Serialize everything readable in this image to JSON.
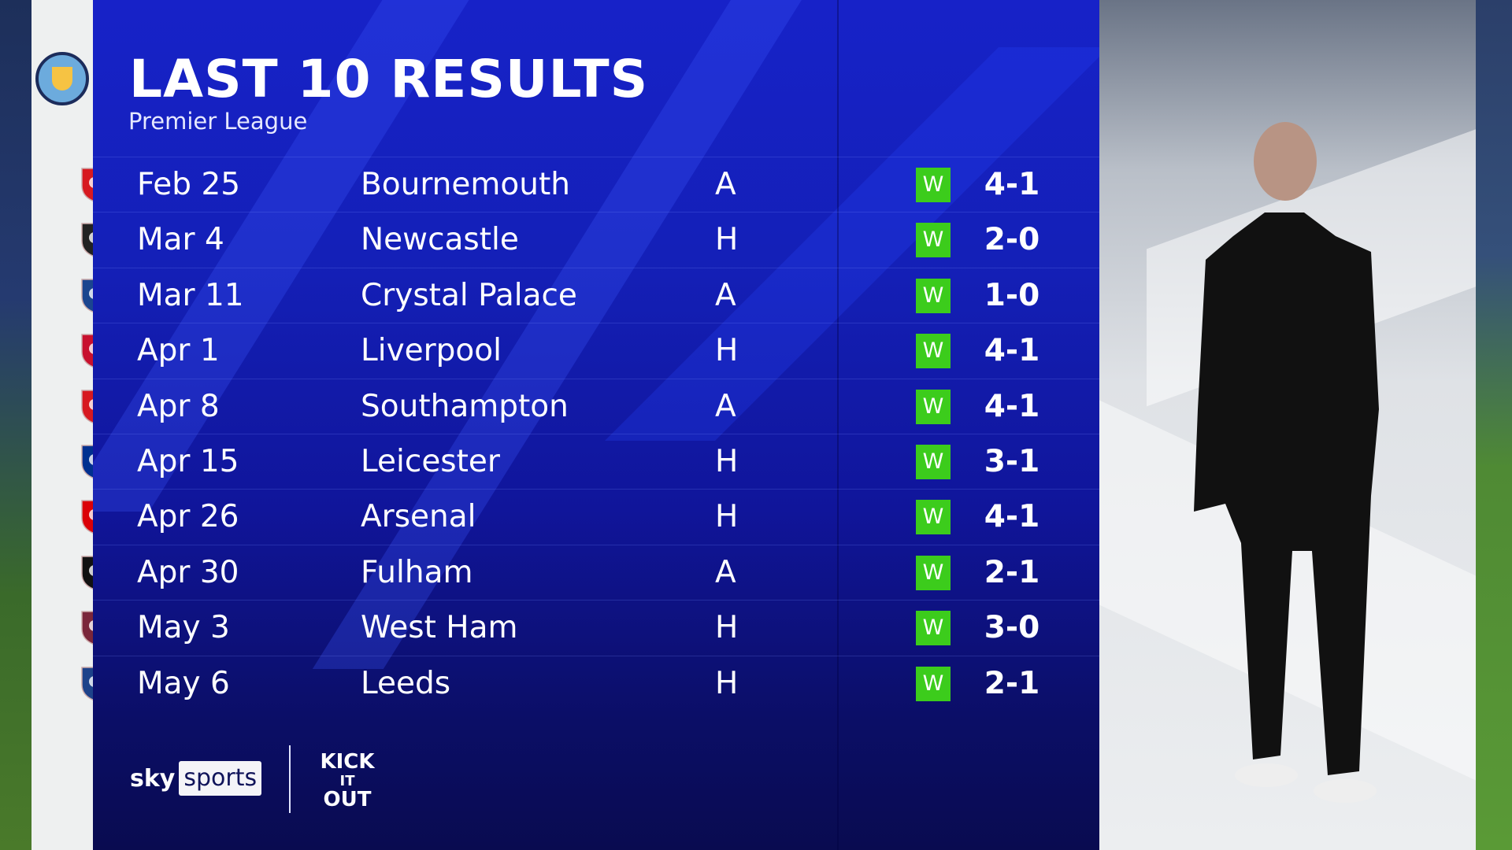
{
  "header": {
    "title": "LAST 10 RESULTS",
    "subtitle": "Premier League",
    "team_badge": "manchester-city-crest"
  },
  "results": [
    {
      "date": "Feb 25",
      "opponent": "Bournemouth",
      "venue": "A",
      "result": "W",
      "score": "4-1",
      "badge": "bournemouth-crest",
      "color": "#d71920"
    },
    {
      "date": "Mar 4",
      "opponent": "Newcastle",
      "venue": "H",
      "result": "W",
      "score": "2-0",
      "badge": "newcastle-crest",
      "color": "#222222"
    },
    {
      "date": "Mar 11",
      "opponent": "Crystal Palace",
      "venue": "A",
      "result": "W",
      "score": "1-0",
      "badge": "crystal-palace-crest",
      "color": "#1b458f"
    },
    {
      "date": "Apr 1",
      "opponent": "Liverpool",
      "venue": "H",
      "result": "W",
      "score": "4-1",
      "badge": "liverpool-crest",
      "color": "#c8102e"
    },
    {
      "date": "Apr 8",
      "opponent": "Southampton",
      "venue": "A",
      "result": "W",
      "score": "4-1",
      "badge": "southampton-crest",
      "color": "#d71920"
    },
    {
      "date": "Apr 15",
      "opponent": "Leicester",
      "venue": "H",
      "result": "W",
      "score": "3-1",
      "badge": "leicester-crest",
      "color": "#003090"
    },
    {
      "date": "Apr 26",
      "opponent": "Arsenal",
      "venue": "H",
      "result": "W",
      "score": "4-1",
      "badge": "arsenal-crest",
      "color": "#db0007"
    },
    {
      "date": "Apr 30",
      "opponent": "Fulham",
      "venue": "A",
      "result": "W",
      "score": "2-1",
      "badge": "fulham-crest",
      "color": "#111111"
    },
    {
      "date": "May 3",
      "opponent": "West Ham",
      "venue": "H",
      "result": "W",
      "score": "3-0",
      "badge": "west-ham-crest",
      "color": "#7a263a"
    },
    {
      "date": "May 6",
      "opponent": "Leeds",
      "venue": "H",
      "result": "W",
      "score": "2-1",
      "badge": "leeds-crest",
      "color": "#1d428a"
    }
  ],
  "footer": {
    "sky": "sky",
    "sports": "sports",
    "kick_it_out": "KICK IT OUT"
  },
  "colors": {
    "win": "#3ccc1c",
    "panel_top": "#1722c8",
    "panel_bottom": "#090b50"
  }
}
